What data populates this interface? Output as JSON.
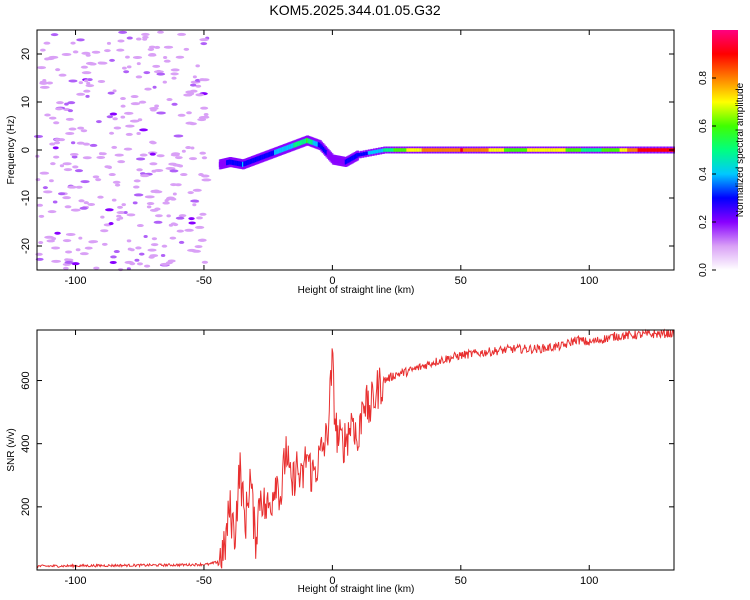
{
  "figure_title": "KOM5.2025.344.01.05.G32",
  "chart_data": [
    {
      "type": "heatmap",
      "name": "spectrogram",
      "xlabel": "Height of straight line (km)",
      "ylabel": "Frequency (Hz)",
      "xlim": [
        -115,
        133
      ],
      "ylim": [
        -25,
        25
      ],
      "xticks": [
        -100,
        -50,
        0,
        50,
        100
      ],
      "xtick_labels": [
        "-100",
        "-50",
        "0",
        "50",
        "100"
      ],
      "yticks": [
        -20,
        -10,
        0,
        10,
        20
      ],
      "ytick_labels": [
        "-20",
        "-10",
        "0",
        "10",
        "20"
      ],
      "noise_region_x": [
        -115,
        -48
      ],
      "signal_track": {
        "x": [
          -44,
          -40,
          -35,
          -30,
          -25,
          -20,
          -15,
          -10,
          -5,
          0,
          5,
          10,
          20,
          30,
          40,
          50,
          60,
          70,
          80,
          90,
          100,
          110,
          120,
          133
        ],
        "y": [
          -3,
          -2.5,
          -3,
          -2,
          -1,
          0,
          1,
          2,
          1,
          -2,
          -2.5,
          -1,
          0,
          0,
          0,
          0,
          0,
          0,
          0,
          0,
          0,
          0,
          0,
          0
        ],
        "amplitude": [
          0.15,
          0.3,
          0.35,
          0.25,
          0.3,
          0.4,
          0.45,
          0.55,
          0.3,
          0.2,
          0.25,
          0.3,
          0.45,
          0.7,
          0.8,
          0.85,
          0.75,
          0.6,
          0.7,
          0.65,
          0.5,
          0.6,
          0.9,
          0.95
        ]
      },
      "colorbar": {
        "label": "Normalized spectral amplitude",
        "range": [
          0,
          1
        ],
        "ticks": [
          0.0,
          0.2,
          0.4,
          0.6,
          0.8
        ],
        "tick_labels": [
          "0.0",
          "0.2",
          "0.4",
          "0.6",
          "0.8"
        ],
        "colormap": [
          "#ffffff",
          "#d9a0f6",
          "#8800ff",
          "#0000ff",
          "#00c8ff",
          "#00ff80",
          "#40ff00",
          "#ffff00",
          "#ff8000",
          "#ff0000",
          "#ff0080"
        ]
      }
    },
    {
      "type": "line",
      "name": "snr",
      "xlabel": "Height of straight line (km)",
      "ylabel": "SNR (v/v)",
      "xlim": [
        -115,
        133
      ],
      "ylim": [
        0,
        760
      ],
      "xticks": [
        -100,
        -50,
        0,
        50,
        100
      ],
      "xtick_labels": [
        "-100",
        "-50",
        "0",
        "50",
        "100"
      ],
      "yticks": [
        200,
        400,
        600
      ],
      "ytick_labels": [
        "200",
        "400",
        "600"
      ],
      "line_color": "#e83030",
      "series": [
        {
          "name": "SNR",
          "x": [
            -115,
            -90,
            -60,
            -48,
            -45,
            -42,
            -40,
            -38,
            -36,
            -34,
            -32,
            -30,
            -28,
            -26,
            -24,
            -22,
            -20,
            -18,
            -16,
            -14,
            -12,
            -10,
            -8,
            -6,
            -4,
            -2,
            0,
            1,
            2,
            4,
            6,
            8,
            10,
            12,
            14,
            16,
            18,
            20,
            25,
            30,
            40,
            50,
            60,
            70,
            80,
            90,
            95,
            100,
            110,
            120,
            133
          ],
          "y": [
            12,
            14,
            16,
            18,
            25,
            60,
            200,
            110,
            330,
            140,
            300,
            90,
            250,
            190,
            210,
            300,
            230,
            390,
            250,
            330,
            270,
            370,
            300,
            330,
            380,
            420,
            660,
            480,
            420,
            400,
            430,
            490,
            380,
            560,
            500,
            540,
            580,
            600,
            620,
            630,
            660,
            680,
            690,
            700,
            700,
            710,
            730,
            720,
            740,
            745,
            750
          ]
        }
      ]
    }
  ]
}
